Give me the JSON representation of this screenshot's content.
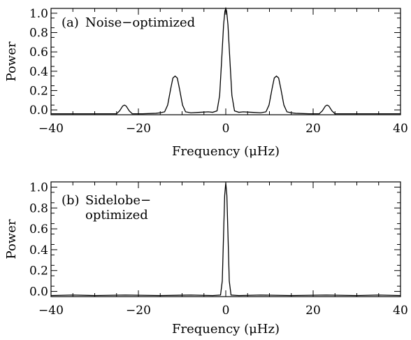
{
  "chart_data": [
    {
      "type": "line",
      "panel_label": "(a)",
      "title_lines": [
        "Noise−optimized"
      ],
      "xlabel": "Frequency (μHz)",
      "ylabel": "Power",
      "xlim": [
        -40,
        40
      ],
      "ylim": [
        -0.05,
        1.05
      ],
      "xticks": [
        -40,
        -20,
        0,
        20,
        40
      ],
      "xtick_labels": [
        "−40",
        "−20",
        "0",
        "20",
        "40"
      ],
      "yticks": [
        0.0,
        0.2,
        0.4,
        0.6,
        0.8,
        1.0
      ],
      "ytick_labels": [
        "0.0",
        "0.2",
        "0.4",
        "0.6",
        "0.8",
        "1.0"
      ],
      "grid": false,
      "legend": false,
      "color": "#000000",
      "series": [
        {
          "x": [
            -40,
            -30,
            -25,
            -24.3,
            -23.6,
            -23.2,
            -22.8,
            -22.1,
            -21.4,
            -19,
            -16,
            -15,
            -14,
            -13.3,
            -12.6,
            -12.1,
            -11.6,
            -11.1,
            -10.6,
            -9.9,
            -9.2,
            -8,
            -6,
            -4,
            -3,
            -2,
            -1.4,
            -0.9,
            -0.5,
            -0.2,
            0,
            0.2,
            0.5,
            0.9,
            1.4,
            2,
            3,
            4,
            6,
            8,
            9.2,
            9.9,
            10.6,
            11.1,
            11.6,
            12.1,
            12.6,
            13.3,
            14,
            15,
            16,
            19,
            21.4,
            22.1,
            22.8,
            23.2,
            23.6,
            24.3,
            25,
            30,
            40
          ],
          "y": [
            -0.04,
            -0.04,
            -0.04,
            -0.01,
            0.04,
            0.05,
            0.04,
            -0.01,
            -0.04,
            -0.04,
            -0.035,
            -0.03,
            -0.02,
            0.05,
            0.22,
            0.33,
            0.35,
            0.33,
            0.22,
            0.05,
            -0.02,
            -0.03,
            -0.025,
            -0.02,
            -0.025,
            -0.01,
            0.15,
            0.55,
            0.88,
            1.02,
            1.05,
            1.02,
            0.88,
            0.55,
            0.15,
            -0.01,
            -0.025,
            -0.02,
            -0.025,
            -0.03,
            -0.02,
            0.05,
            0.22,
            0.33,
            0.35,
            0.33,
            0.22,
            0.05,
            -0.02,
            -0.03,
            -0.035,
            -0.04,
            -0.04,
            -0.01,
            0.04,
            0.05,
            0.04,
            -0.01,
            -0.04,
            -0.04,
            -0.04
          ]
        }
      ]
    },
    {
      "type": "line",
      "panel_label": "(b)",
      "title_lines": [
        "Sidelobe−",
        "optimized"
      ],
      "xlabel": "Frequency (μHz)",
      "ylabel": "Power",
      "xlim": [
        -40,
        40
      ],
      "ylim": [
        -0.05,
        1.05
      ],
      "xticks": [
        -40,
        -20,
        0,
        20,
        40
      ],
      "xtick_labels": [
        "−40",
        "−20",
        "0",
        "20",
        "40"
      ],
      "yticks": [
        0.0,
        0.2,
        0.4,
        0.6,
        0.8,
        1.0
      ],
      "ytick_labels": [
        "0.0",
        "0.2",
        "0.4",
        "0.6",
        "0.8",
        "1.0"
      ],
      "grid": false,
      "legend": false,
      "color": "#000000",
      "series": [
        {
          "x": [
            -40,
            -35,
            -30,
            -23,
            -15,
            -8,
            -3,
            -1.2,
            -0.8,
            -0.5,
            -0.25,
            0,
            0.25,
            0.5,
            0.8,
            1.2,
            3,
            8,
            15,
            23,
            30,
            35,
            40
          ],
          "y": [
            -0.04,
            -0.035,
            -0.04,
            -0.035,
            -0.04,
            -0.035,
            -0.04,
            -0.035,
            0.1,
            0.55,
            0.92,
            1.04,
            0.92,
            0.55,
            0.1,
            -0.035,
            -0.04,
            -0.035,
            -0.04,
            -0.035,
            -0.04,
            -0.035,
            -0.04
          ]
        }
      ]
    }
  ]
}
